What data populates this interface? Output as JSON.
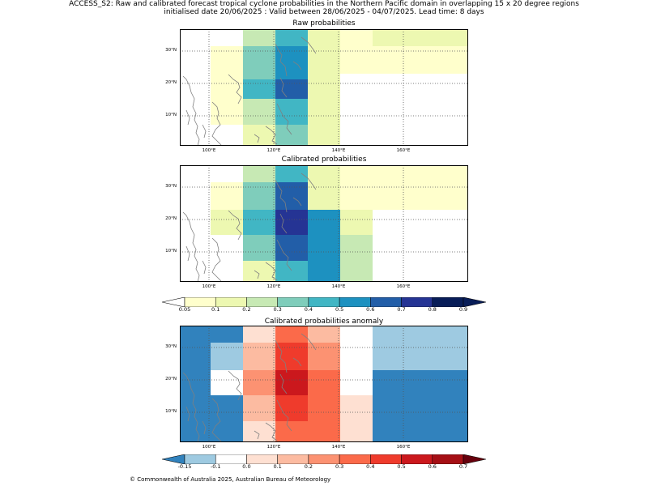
{
  "header": {
    "line1": "ACCESS_S2: Raw and calibrated forecast tropical cyclone probabilities in the Northern Pacific domain in overlapping 15 x 20 degree regions",
    "line2": "initialised date 20/06/2025 :  Valid between 28/06/2025 - 04/07/2025. Lead time: 8 days"
  },
  "panels": [
    {
      "title": "Raw probabilities",
      "lat_labels": [
        "30°N",
        "20°N",
        "10°N"
      ],
      "lon_labels": [
        "100°E",
        "120°E",
        "140°E",
        "160°E"
      ]
    },
    {
      "title": "Calibrated probabilities",
      "lat_labels": [
        "30°N",
        "20°N",
        "10°N"
      ],
      "lon_labels": [
        "100°E",
        "120°E",
        "140°E",
        "160°E"
      ]
    },
    {
      "title": "Calibrated probabilities anomaly",
      "lat_labels": [
        "30°N",
        "20°N",
        "10°N"
      ],
      "lon_labels": [
        "100°E",
        "120°E",
        "140°E",
        "160°E"
      ]
    }
  ],
  "colorbar_prob": {
    "ticks": [
      "0.05",
      "0.1",
      "0.2",
      "0.3",
      "0.4",
      "0.5",
      "0.6",
      "0.7",
      "0.8",
      "0.9"
    ],
    "colors": [
      "#ffffcc",
      "#edf8b1",
      "#c7e9b4",
      "#7fcdbb",
      "#41b6c4",
      "#1d91c0",
      "#225ea8",
      "#253494",
      "#081d58"
    ],
    "extend_low": "#ffffff",
    "extend_high": "#081d58"
  },
  "colorbar_anom": {
    "ticks": [
      "-0.15",
      "-0.1",
      "0.0",
      "0.1",
      "0.2",
      "0.3",
      "0.4",
      "0.5",
      "0.6",
      "0.7"
    ],
    "colors": [
      "#9ecae1",
      "#ffffff",
      "#fee0d2",
      "#fcbba1",
      "#fc9272",
      "#fb6a4a",
      "#ef3b2c",
      "#cb181d",
      "#a50f15"
    ],
    "extend_low": "#3182bd",
    "extend_high": "#67000d"
  },
  "footer": "© Commonwealth of Australia 2025, Australian Bureau of Meteorology",
  "chart_data": [
    {
      "type": "heatmap",
      "title": "Raw probabilities",
      "grid_rows_lat": [
        "30-36N",
        "25-30N",
        "23-25N",
        "15-23N",
        "8-15N",
        "0-8N"
      ],
      "grid_cols_lon": [
        "90-110E",
        "110-120E",
        "120-130E",
        "130-140E",
        "140-150E",
        "150-160E",
        "160-170E",
        "170-180E"
      ],
      "cells": [
        [
          "white",
          "white",
          "#c7e9b4",
          "#41b6c4",
          "#edf8b1",
          "#ffffcc",
          "#edf8b1",
          "#edf8b1"
        ],
        [
          "white",
          "#ffffcc",
          "#7fcdbb",
          "#1d91c0",
          "#edf8b1",
          "#ffffcc",
          "#ffffcc",
          "#ffffcc"
        ],
        [
          "white",
          "#ffffcc",
          "#7fcdbb",
          "#1d91c0",
          "#edf8b1",
          "white",
          "white",
          "white"
        ],
        [
          "white",
          "#ffffcc",
          "#41b6c4",
          "#225ea8",
          "#edf8b1",
          "white",
          "white",
          "white"
        ],
        [
          "white",
          "#ffffcc",
          "#c7e9b4",
          "#41b6c4",
          "#edf8b1",
          "white",
          "white",
          "white"
        ],
        [
          "white",
          "white",
          "#edf8b1",
          "#7fcdbb",
          "#edf8b1",
          "white",
          "white",
          "white"
        ]
      ],
      "grid": true
    },
    {
      "type": "heatmap",
      "title": "Calibrated probabilities",
      "cells": [
        [
          "white",
          "white",
          "#c7e9b4",
          "#41b6c4",
          "#edf8b1",
          "#ffffcc",
          "#ffffcc",
          "#ffffcc"
        ],
        [
          "white",
          "#ffffcc",
          "#7fcdbb",
          "#225ea8",
          "#edf8b1",
          "#ffffcc",
          "#ffffcc",
          "#ffffcc"
        ],
        [
          "white",
          "#edf8b1",
          "#41b6c4",
          "#253494",
          "#1d91c0",
          "#edf8b1",
          "white",
          "white"
        ],
        [
          "white",
          "#edf8b1",
          "#41b6c4",
          "#253494",
          "#1d91c0",
          "#edf8b1",
          "white",
          "white"
        ],
        [
          "white",
          "white",
          "#7fcdbb",
          "#225ea8",
          "#1d91c0",
          "#c7e9b4",
          "white",
          "white"
        ],
        [
          "white",
          "white",
          "#edf8b1",
          "#41b6c4",
          "#1d91c0",
          "#c7e9b4",
          "white",
          "white"
        ]
      ],
      "grid": true
    },
    {
      "type": "heatmap",
      "title": "Calibrated probabilities anomaly",
      "cells": [
        [
          "#3182bd",
          "#3182bd",
          "#fee0d2",
          "#fb6a4a",
          "#fcbba1",
          "white",
          "#9ecae1",
          "#9ecae1"
        ],
        [
          "#3182bd",
          "#9ecae1",
          "#fcbba1",
          "#ef3b2c",
          "#fc9272",
          "white",
          "#9ecae1",
          "#9ecae1"
        ],
        [
          "#3182bd",
          "white",
          "#fc9272",
          "#cb181d",
          "#fb6a4a",
          "white",
          "#3182bd",
          "#3182bd"
        ],
        [
          "#3182bd",
          "white",
          "#fc9272",
          "#cb181d",
          "#fb6a4a",
          "white",
          "#3182bd",
          "#3182bd"
        ],
        [
          "#3182bd",
          "#3182bd",
          "#fcbba1",
          "#ef3b2c",
          "#fb6a4a",
          "#fee0d2",
          "#3182bd",
          "#3182bd"
        ],
        [
          "#3182bd",
          "#3182bd",
          "#fee0d2",
          "#fb6a4a",
          "#fb6a4a",
          "#fee0d2",
          "#3182bd",
          "#3182bd"
        ]
      ],
      "grid": true
    }
  ]
}
